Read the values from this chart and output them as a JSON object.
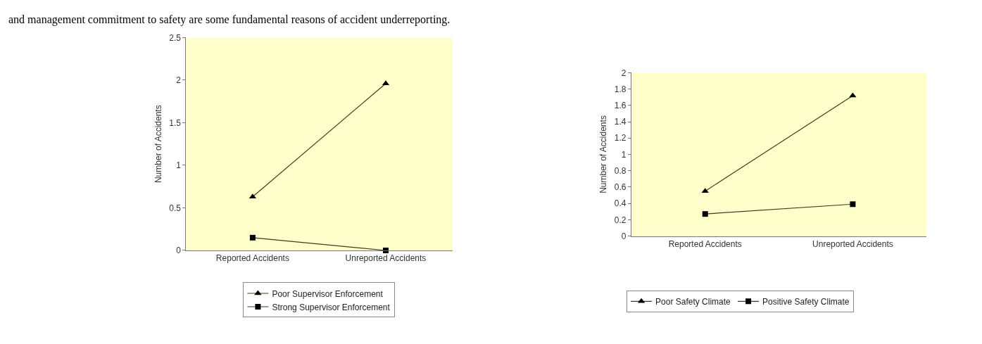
{
  "chart_data": [
    {
      "type": "line",
      "ylabel": "Number of Accidents",
      "categories": [
        "Reported Accidents",
        "Unreported Accidents"
      ],
      "annotations": [
        "and management commitment to safety are some fundamental reasons of accident underreporting."
      ],
      "series": [
        {
          "name": "Poor Supervisor Enforcement",
          "color": "#3d3d1f",
          "marker": "triangle",
          "values": [
            0.63,
            1.96
          ]
        },
        {
          "name": "Strong Supervisor Enforcement",
          "color": "#3d3d1f",
          "marker": "square",
          "values": [
            0.15,
            0.0
          ]
        }
      ],
      "ylim": [
        0,
        2.5
      ],
      "yticks": [
        0,
        0.5,
        1,
        1.5,
        2,
        2.5
      ],
      "grid": false,
      "legend": "bottom",
      "line_style": "solid"
    },
    {
      "type": "line",
      "ylabel": "Number of Accidents",
      "categories": [
        "Reported Accidents",
        "Unreported Accidents"
      ],
      "series": [
        {
          "name": "Poor Safety Climate",
          "color": "#3d3d1f",
          "marker": "triangle",
          "values": [
            0.55,
            1.72
          ]
        },
        {
          "name": "Positive Safety Climate",
          "color": "#3d3d1f",
          "marker": "square",
          "values": [
            0.27,
            0.39
          ]
        }
      ],
      "ylim": [
        0,
        2
      ],
      "yticks": [
        0,
        0.2,
        0.4,
        0.6,
        0.8,
        1,
        1.2,
        1.4,
        1.6,
        1.8,
        2
      ],
      "grid": false,
      "legend": "bottom",
      "line_style": "solid"
    }
  ]
}
